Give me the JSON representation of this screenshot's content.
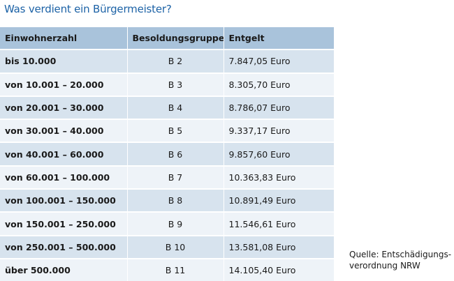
{
  "title": "Was verdient ein Bürgermeister?",
  "table": {
    "headers": [
      "Einwohnerzahl",
      "Besoldungsgruppe",
      "Entgelt"
    ],
    "rows": [
      [
        "bis 10.000",
        "B 2",
        "7.847,05 Euro"
      ],
      [
        "von 10.001 – 20.000",
        "B 3",
        "8.305,70 Euro"
      ],
      [
        "von 20.001 – 30.000",
        "B 4",
        "8.786,07 Euro"
      ],
      [
        "von 30.001 – 40.000",
        "B 5",
        "9.337,17 Euro"
      ],
      [
        "von 40.001 – 60.000",
        "B 6",
        "9.857,60 Euro"
      ],
      [
        "von 60.001 – 100.000",
        "B 7",
        "10.363,83 Euro"
      ],
      [
        "von 100.001 – 150.000",
        "B 8",
        "10.891,49 Euro"
      ],
      [
        "von 150.001 – 250.000",
        "B 9",
        "11.546,61 Euro"
      ],
      [
        "von 250.001 – 500.000",
        "B 10",
        "13.581,08 Euro"
      ],
      [
        "über 500.000",
        "B 11",
        "14.105,40 Euro"
      ]
    ]
  },
  "source": {
    "line1": "Quelle: Entschädigungs-",
    "line2": "verordnung NRW"
  }
}
